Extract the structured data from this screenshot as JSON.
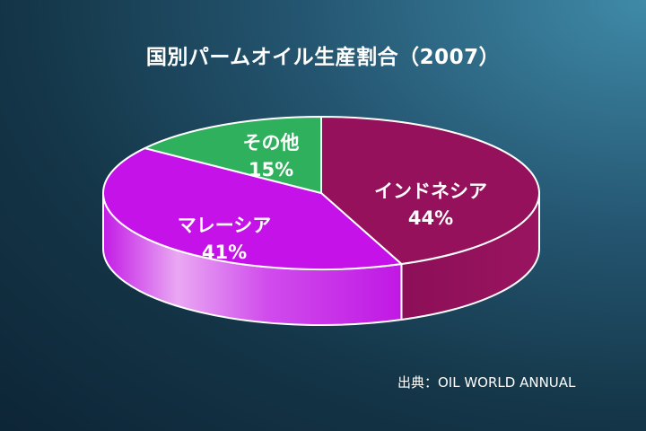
{
  "title": "国別パームオイル生産割合（2007）",
  "source": "出典：OIL WORLD ANNUAL",
  "chart_data": {
    "type": "pie",
    "title": "国別パームオイル生産割合（2007）",
    "slices": [
      {
        "label": "インドネシア",
        "value": 44,
        "value_label": "44%",
        "color": "#95115c",
        "side_color": "#8a0f55"
      },
      {
        "label": "マレーシア",
        "value": 41,
        "value_label": "41%",
        "color": "#c412e8",
        "side_color": "#c41ee8"
      },
      {
        "label": "その他",
        "value": 15,
        "value_label": "15%",
        "color": "#2fb05c",
        "side_color": "#28a050"
      }
    ],
    "style": "3d"
  }
}
